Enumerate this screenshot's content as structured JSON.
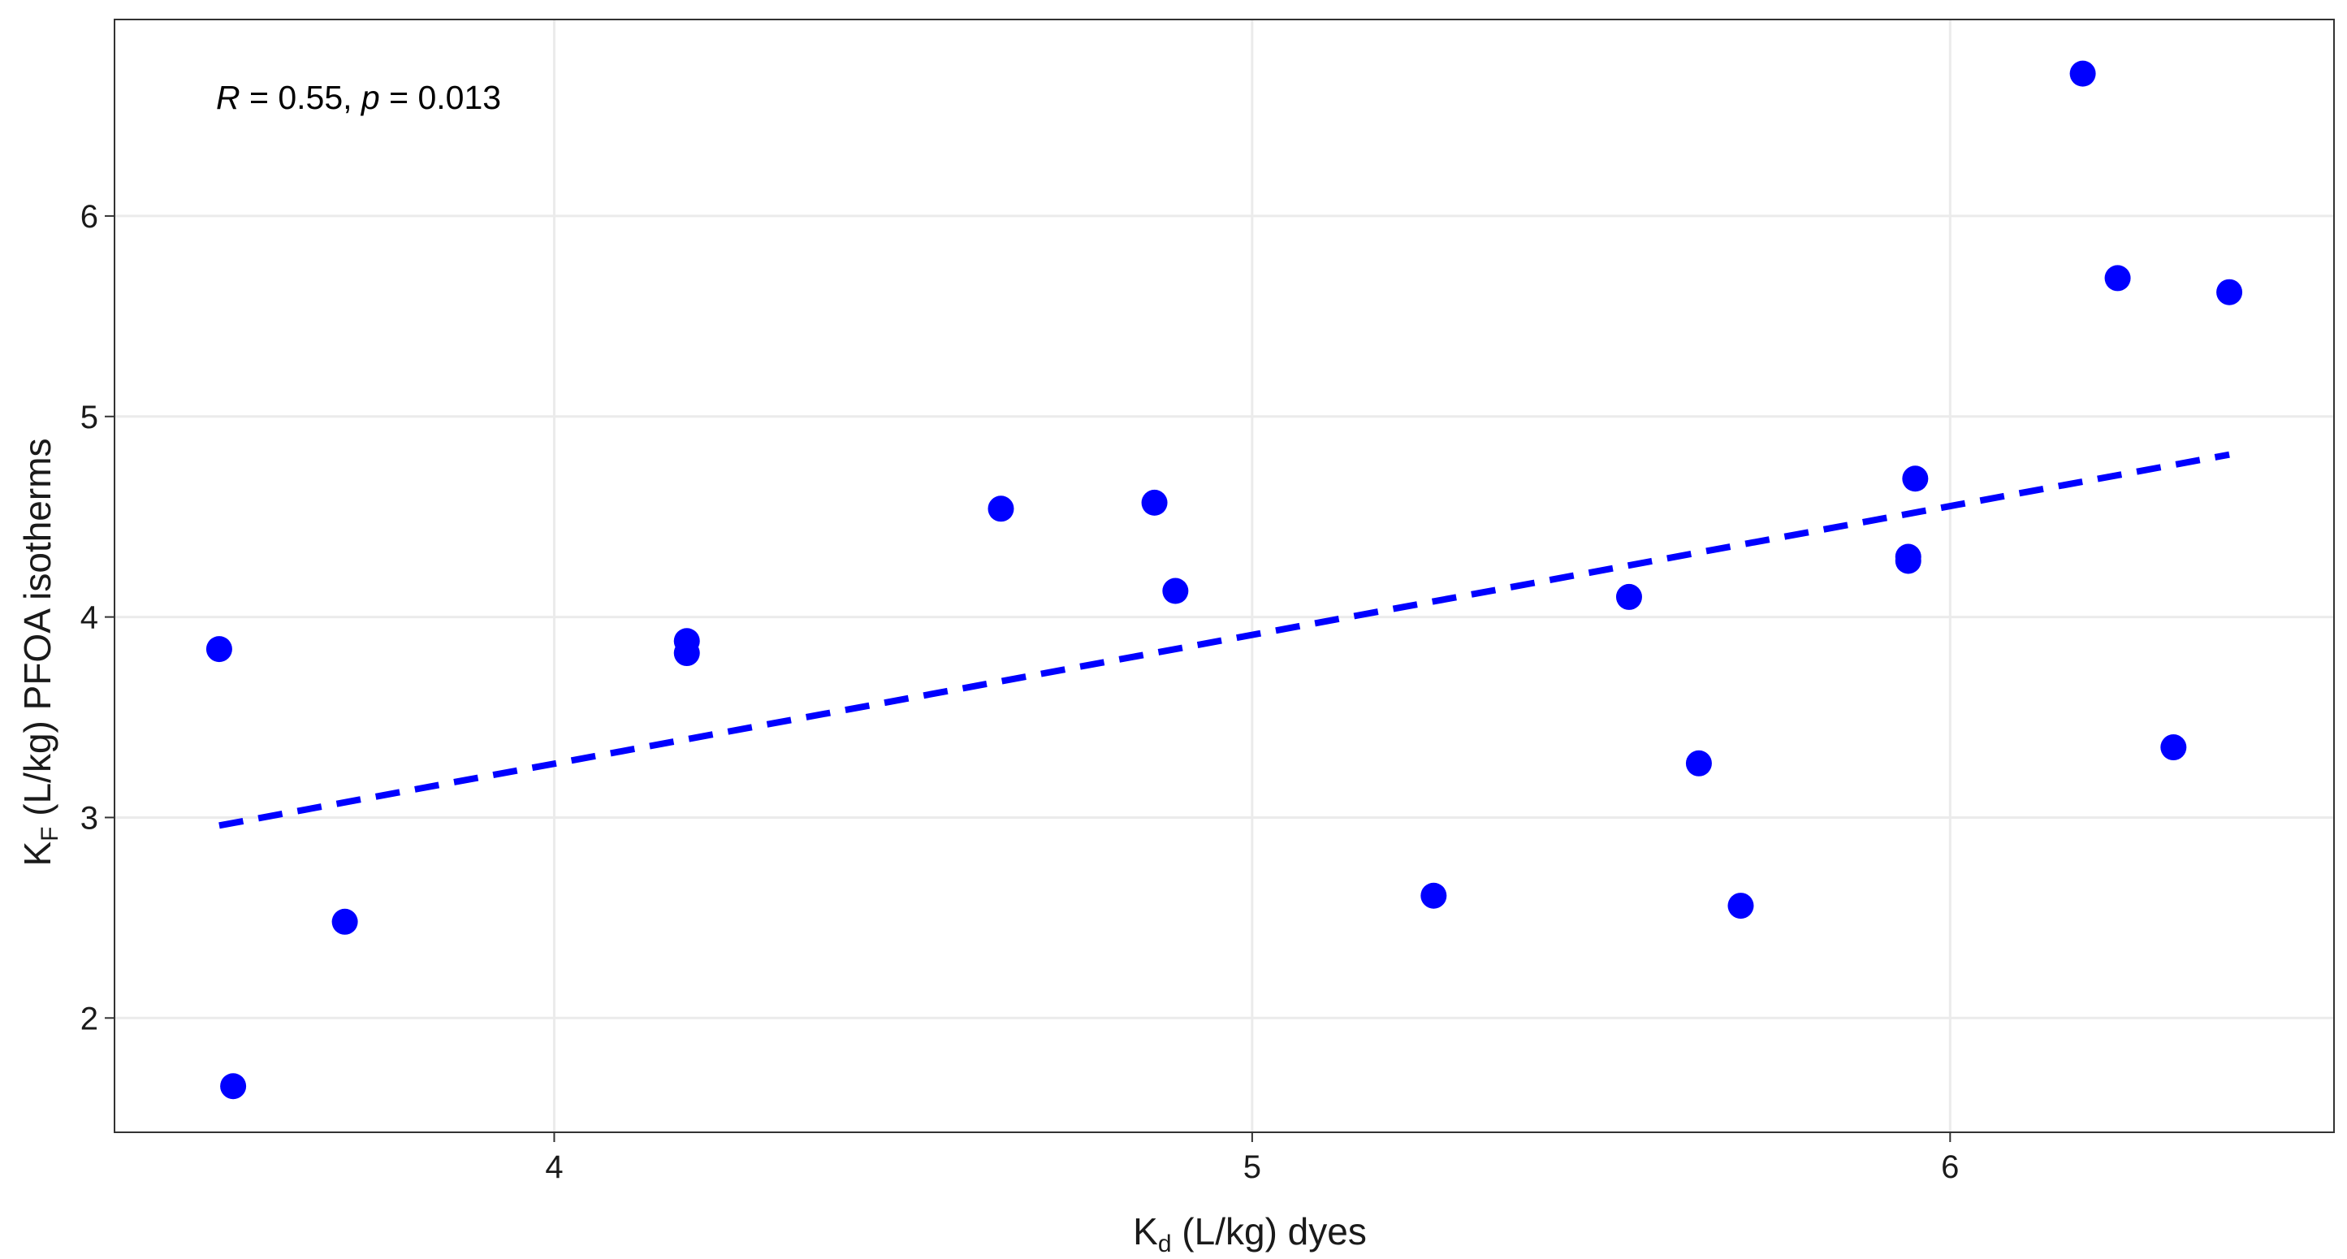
{
  "chart_data": {
    "type": "scatter",
    "title": "",
    "xlabel": {
      "main": "K",
      "sub": "d",
      "rest": " (L/kg) dyes"
    },
    "ylabel": {
      "main": "K",
      "sub": "F",
      "rest": " (L/kg) PFOA isotherms"
    },
    "xlim": [
      3.37,
      6.55
    ],
    "ylim": [
      1.43,
      6.98
    ],
    "x_ticks": [
      4,
      5,
      6
    ],
    "x_tick_labels": [
      "4",
      "5",
      "6"
    ],
    "y_ticks": [
      2,
      3,
      4,
      5,
      6
    ],
    "y_tick_labels": [
      "2",
      "3",
      "4",
      "5",
      "6"
    ],
    "grid": true,
    "point_color": "#0000FF",
    "line_color": "#0000FF",
    "series": [
      {
        "type": "scatter",
        "points": [
          {
            "x": 3.52,
            "y": 3.84
          },
          {
            "x": 3.54,
            "y": 1.66
          },
          {
            "x": 3.7,
            "y": 2.48
          },
          {
            "x": 4.19,
            "y": 3.88
          },
          {
            "x": 4.19,
            "y": 3.82
          },
          {
            "x": 4.64,
            "y": 4.54
          },
          {
            "x": 4.86,
            "y": 4.57
          },
          {
            "x": 4.89,
            "y": 4.13
          },
          {
            "x": 5.26,
            "y": 2.61
          },
          {
            "x": 5.54,
            "y": 4.1
          },
          {
            "x": 5.64,
            "y": 3.27
          },
          {
            "x": 5.7,
            "y": 2.56
          },
          {
            "x": 5.94,
            "y": 4.3
          },
          {
            "x": 5.94,
            "y": 4.28
          },
          {
            "x": 5.95,
            "y": 4.69
          },
          {
            "x": 6.19,
            "y": 6.71
          },
          {
            "x": 6.24,
            "y": 5.69
          },
          {
            "x": 6.32,
            "y": 3.35
          },
          {
            "x": 6.4,
            "y": 5.62
          }
        ]
      },
      {
        "type": "line",
        "style": "dashed",
        "points": [
          {
            "x": 3.52,
            "y": 2.96
          },
          {
            "x": 6.4,
            "y": 4.81
          }
        ]
      }
    ],
    "annotation": {
      "r_symbol": "R",
      "r_text": " = 0.55, ",
      "p_symbol": "p",
      "p_text": " = 0.013"
    }
  }
}
